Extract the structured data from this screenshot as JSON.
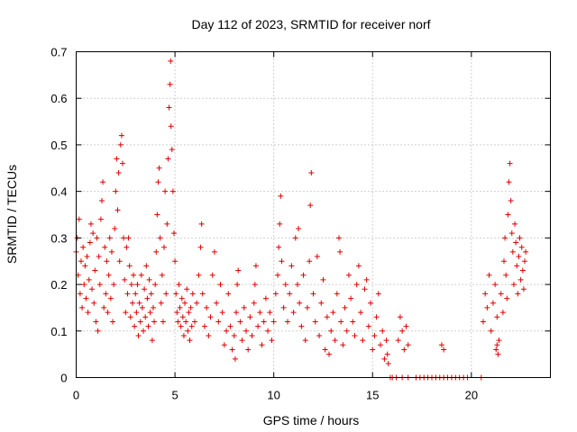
{
  "chart_data": {
    "type": "scatter",
    "title": "Day 112 of 2023, SRMTID for receiver norf",
    "xlabel": "GPS time / hours",
    "ylabel": "SRMTID / TECUs",
    "xlim": [
      0,
      24
    ],
    "ylim": [
      0,
      0.7
    ],
    "xticks": [
      0,
      5,
      10,
      15,
      20
    ],
    "xtick_labels": [
      "0",
      "5",
      "10",
      "15",
      "20"
    ],
    "yticks": [
      0,
      0.1,
      0.2,
      0.3,
      0.4,
      0.5,
      0.6,
      0.7
    ],
    "ytick_labels": [
      "0",
      "0.1",
      "0.2",
      "0.3",
      "0.4",
      "0.5",
      "0.6",
      "0.7"
    ],
    "grid": true,
    "marker": "plus",
    "series": [
      {
        "name": "SRMTID",
        "color": "#e00000",
        "points": [
          [
            0.0,
            0.27
          ],
          [
            0.05,
            0.3
          ],
          [
            0.1,
            0.22
          ],
          [
            0.15,
            0.34
          ],
          [
            0.2,
            0.18
          ],
          [
            0.25,
            0.25
          ],
          [
            0.3,
            0.15
          ],
          [
            0.35,
            0.28
          ],
          [
            0.4,
            0.2
          ],
          [
            0.45,
            0.24
          ],
          [
            0.5,
            0.17
          ],
          [
            0.55,
            0.26
          ],
          [
            0.6,
            0.14
          ],
          [
            0.65,
            0.21
          ],
          [
            0.7,
            0.29
          ],
          [
            0.75,
            0.33
          ],
          [
            0.8,
            0.19
          ],
          [
            0.85,
            0.31
          ],
          [
            0.9,
            0.16
          ],
          [
            0.95,
            0.23
          ],
          [
            1.0,
            0.12
          ],
          [
            1.05,
            0.3
          ],
          [
            1.1,
            0.1
          ],
          [
            1.15,
            0.26
          ],
          [
            1.2,
            0.2
          ],
          [
            1.25,
            0.34
          ],
          [
            1.3,
            0.38
          ],
          [
            1.35,
            0.42
          ],
          [
            1.4,
            0.15
          ],
          [
            1.45,
            0.28
          ],
          [
            1.5,
            0.18
          ],
          [
            1.55,
            0.25
          ],
          [
            1.6,
            0.14
          ],
          [
            1.65,
            0.22
          ],
          [
            1.7,
            0.3
          ],
          [
            1.75,
            0.17
          ],
          [
            1.8,
            0.27
          ],
          [
            1.85,
            0.12
          ],
          [
            1.9,
            0.2
          ],
          [
            1.95,
            0.32
          ],
          [
            2.0,
            0.4
          ],
          [
            2.05,
            0.47
          ],
          [
            2.1,
            0.36
          ],
          [
            2.15,
            0.44
          ],
          [
            2.2,
            0.25
          ],
          [
            2.25,
            0.5
          ],
          [
            2.3,
            0.52
          ],
          [
            2.35,
            0.46
          ],
          [
            2.4,
            0.3
          ],
          [
            2.45,
            0.21
          ],
          [
            2.5,
            0.14
          ],
          [
            2.55,
            0.28
          ],
          [
            2.6,
            0.18
          ],
          [
            2.65,
            0.3
          ],
          [
            2.7,
            0.24
          ],
          [
            2.75,
            0.13
          ],
          [
            2.8,
            0.2
          ],
          [
            2.85,
            0.16
          ],
          [
            2.9,
            0.22
          ],
          [
            2.95,
            0.11
          ],
          [
            3.0,
            0.18
          ],
          [
            3.05,
            0.14
          ],
          [
            3.1,
            0.2
          ],
          [
            3.15,
            0.09
          ],
          [
            3.2,
            0.16
          ],
          [
            3.25,
            0.12
          ],
          [
            3.3,
            0.22
          ],
          [
            3.35,
            0.15
          ],
          [
            3.4,
            0.1
          ],
          [
            3.45,
            0.19
          ],
          [
            3.5,
            0.13
          ],
          [
            3.55,
            0.24
          ],
          [
            3.6,
            0.17
          ],
          [
            3.65,
            0.11
          ],
          [
            3.7,
            0.21
          ],
          [
            3.75,
            0.14
          ],
          [
            3.8,
            0.18
          ],
          [
            3.85,
            0.08
          ],
          [
            3.9,
            0.15
          ],
          [
            3.95,
            0.12
          ],
          [
            4.0,
            0.2
          ],
          [
            4.05,
            0.27
          ],
          [
            4.1,
            0.35
          ],
          [
            4.15,
            0.42
          ],
          [
            4.2,
            0.45
          ],
          [
            4.25,
            0.3
          ],
          [
            4.3,
            0.16
          ],
          [
            4.35,
            0.22
          ],
          [
            4.4,
            0.12
          ],
          [
            4.45,
            0.28
          ],
          [
            4.5,
            0.4
          ],
          [
            4.55,
            0.18
          ],
          [
            4.6,
            0.33
          ],
          [
            4.65,
            0.47
          ],
          [
            4.7,
            0.58
          ],
          [
            4.75,
            0.63
          ],
          [
            4.78,
            0.68
          ],
          [
            4.8,
            0.54
          ],
          [
            4.85,
            0.49
          ],
          [
            4.9,
            0.4
          ],
          [
            4.95,
            0.31
          ],
          [
            5.0,
            0.25
          ],
          [
            5.05,
            0.18
          ],
          [
            5.1,
            0.14
          ],
          [
            5.15,
            0.12
          ],
          [
            5.2,
            0.2
          ],
          [
            5.25,
            0.15
          ],
          [
            5.3,
            0.11
          ],
          [
            5.35,
            0.17
          ],
          [
            5.4,
            0.13
          ],
          [
            5.45,
            0.09
          ],
          [
            5.5,
            0.16
          ],
          [
            5.55,
            0.12
          ],
          [
            5.6,
            0.19
          ],
          [
            5.65,
            0.1
          ],
          [
            5.7,
            0.14
          ],
          [
            5.75,
            0.08
          ],
          [
            5.8,
            0.15
          ],
          [
            5.85,
            0.11
          ],
          [
            5.9,
            0.18
          ],
          [
            6.0,
            0.12
          ],
          [
            6.1,
            0.16
          ],
          [
            6.2,
            0.22
          ],
          [
            6.3,
            0.28
          ],
          [
            6.35,
            0.33
          ],
          [
            6.4,
            0.18
          ],
          [
            6.5,
            0.11
          ],
          [
            6.6,
            0.15
          ],
          [
            6.7,
            0.09
          ],
          [
            6.8,
            0.13
          ],
          [
            6.9,
            0.22
          ],
          [
            7.0,
            0.27
          ],
          [
            7.1,
            0.16
          ],
          [
            7.2,
            0.12
          ],
          [
            7.3,
            0.2
          ],
          [
            7.4,
            0.14
          ],
          [
            7.5,
            0.07
          ],
          [
            7.6,
            0.1
          ],
          [
            7.7,
            0.18
          ],
          [
            7.8,
            0.11
          ],
          [
            7.9,
            0.06
          ],
          [
            8.0,
            0.09
          ],
          [
            8.05,
            0.04
          ],
          [
            8.1,
            0.14
          ],
          [
            8.15,
            0.2
          ],
          [
            8.2,
            0.23
          ],
          [
            8.3,
            0.12
          ],
          [
            8.4,
            0.08
          ],
          [
            8.5,
            0.15
          ],
          [
            8.6,
            0.1
          ],
          [
            8.7,
            0.06
          ],
          [
            8.8,
            0.13
          ],
          [
            8.9,
            0.09
          ],
          [
            9.0,
            0.16
          ],
          [
            9.05,
            0.2
          ],
          [
            9.1,
            0.24
          ],
          [
            9.2,
            0.11
          ],
          [
            9.3,
            0.14
          ],
          [
            9.4,
            0.07
          ],
          [
            9.5,
            0.12
          ],
          [
            9.6,
            0.17
          ],
          [
            9.7,
            0.1
          ],
          [
            9.8,
            0.14
          ],
          [
            9.9,
            0.08
          ],
          [
            10.0,
            0.12
          ],
          [
            10.1,
            0.18
          ],
          [
            10.2,
            0.22
          ],
          [
            10.25,
            0.28
          ],
          [
            10.3,
            0.33
          ],
          [
            10.35,
            0.39
          ],
          [
            10.4,
            0.25
          ],
          [
            10.5,
            0.15
          ],
          [
            10.6,
            0.2
          ],
          [
            10.7,
            0.12
          ],
          [
            10.8,
            0.18
          ],
          [
            10.9,
            0.24
          ],
          [
            11.0,
            0.14
          ],
          [
            11.1,
            0.3
          ],
          [
            11.2,
            0.2
          ],
          [
            11.25,
            0.32
          ],
          [
            11.3,
            0.16
          ],
          [
            11.4,
            0.11
          ],
          [
            11.5,
            0.22
          ],
          [
            11.6,
            0.08
          ],
          [
            11.7,
            0.15
          ],
          [
            11.8,
            0.25
          ],
          [
            11.85,
            0.37
          ],
          [
            11.9,
            0.44
          ],
          [
            12.0,
            0.18
          ],
          [
            12.1,
            0.12
          ],
          [
            12.2,
            0.26
          ],
          [
            12.3,
            0.09
          ],
          [
            12.4,
            0.16
          ],
          [
            12.5,
            0.21
          ],
          [
            12.6,
            0.06
          ],
          [
            12.7,
            0.13
          ],
          [
            12.8,
            0.05
          ],
          [
            12.9,
            0.1
          ],
          [
            13.0,
            0.14
          ],
          [
            13.1,
            0.08
          ],
          [
            13.2,
            0.18
          ],
          [
            13.3,
            0.3
          ],
          [
            13.35,
            0.27
          ],
          [
            13.4,
            0.12
          ],
          [
            13.5,
            0.07
          ],
          [
            13.6,
            0.15
          ],
          [
            13.7,
            0.1
          ],
          [
            13.8,
            0.22
          ],
          [
            13.9,
            0.17
          ],
          [
            14.0,
            0.12
          ],
          [
            14.1,
            0.09
          ],
          [
            14.2,
            0.2
          ],
          [
            14.3,
            0.24
          ],
          [
            14.4,
            0.14
          ],
          [
            14.5,
            0.08
          ],
          [
            14.6,
            0.19
          ],
          [
            14.7,
            0.21
          ],
          [
            14.8,
            0.11
          ],
          [
            14.9,
            0.16
          ],
          [
            15.0,
            0.06
          ],
          [
            15.1,
            0.09
          ],
          [
            15.2,
            0.13
          ],
          [
            15.3,
            0.18
          ],
          [
            15.4,
            0.07
          ],
          [
            15.5,
            0.1
          ],
          [
            15.6,
            0.04
          ],
          [
            15.7,
            0.08
          ],
          [
            15.75,
            0.05
          ],
          [
            15.8,
            0.03
          ],
          [
            16.3,
            0.08
          ],
          [
            16.4,
            0.13
          ],
          [
            16.5,
            0.1
          ],
          [
            16.6,
            0.06
          ],
          [
            16.7,
            0.11
          ],
          [
            16.8,
            0.07
          ],
          [
            18.5,
            0.07
          ],
          [
            18.6,
            0.06
          ],
          [
            15.9,
            0.0
          ],
          [
            16.0,
            0.0
          ],
          [
            16.2,
            0.0
          ],
          [
            16.5,
            0.0
          ],
          [
            16.8,
            0.0
          ],
          [
            17.2,
            0.0
          ],
          [
            17.4,
            0.0
          ],
          [
            17.6,
            0.0
          ],
          [
            17.8,
            0.0
          ],
          [
            18.0,
            0.0
          ],
          [
            18.2,
            0.0
          ],
          [
            18.4,
            0.0
          ],
          [
            18.6,
            0.0
          ],
          [
            18.8,
            0.0
          ],
          [
            19.0,
            0.0
          ],
          [
            19.2,
            0.0
          ],
          [
            19.4,
            0.0
          ],
          [
            19.6,
            0.0
          ],
          [
            19.8,
            0.0
          ],
          [
            20.5,
            0.0
          ],
          [
            20.6,
            0.12
          ],
          [
            20.7,
            0.18
          ],
          [
            20.8,
            0.15
          ],
          [
            20.9,
            0.22
          ],
          [
            21.0,
            0.1
          ],
          [
            21.1,
            0.16
          ],
          [
            21.2,
            0.2
          ],
          [
            21.3,
            0.13
          ],
          [
            21.4,
            0.08
          ],
          [
            21.5,
            0.18
          ],
          [
            21.6,
            0.14
          ],
          [
            21.65,
            0.25
          ],
          [
            21.7,
            0.3
          ],
          [
            21.75,
            0.22
          ],
          [
            21.8,
            0.17
          ],
          [
            21.85,
            0.35
          ],
          [
            21.9,
            0.42
          ],
          [
            21.95,
            0.46
          ],
          [
            22.0,
            0.38
          ],
          [
            22.05,
            0.31
          ],
          [
            22.1,
            0.27
          ],
          [
            22.15,
            0.2
          ],
          [
            22.2,
            0.33
          ],
          [
            22.25,
            0.29
          ],
          [
            22.3,
            0.24
          ],
          [
            22.35,
            0.18
          ],
          [
            22.4,
            0.26
          ],
          [
            22.45,
            0.3
          ],
          [
            22.5,
            0.21
          ],
          [
            22.55,
            0.28
          ],
          [
            22.6,
            0.23
          ],
          [
            22.65,
            0.19
          ],
          [
            22.7,
            0.25
          ],
          [
            22.75,
            0.27
          ],
          [
            21.3,
            0.07
          ],
          [
            21.35,
            0.05
          ],
          [
            21.25,
            0.06
          ]
        ]
      }
    ]
  }
}
